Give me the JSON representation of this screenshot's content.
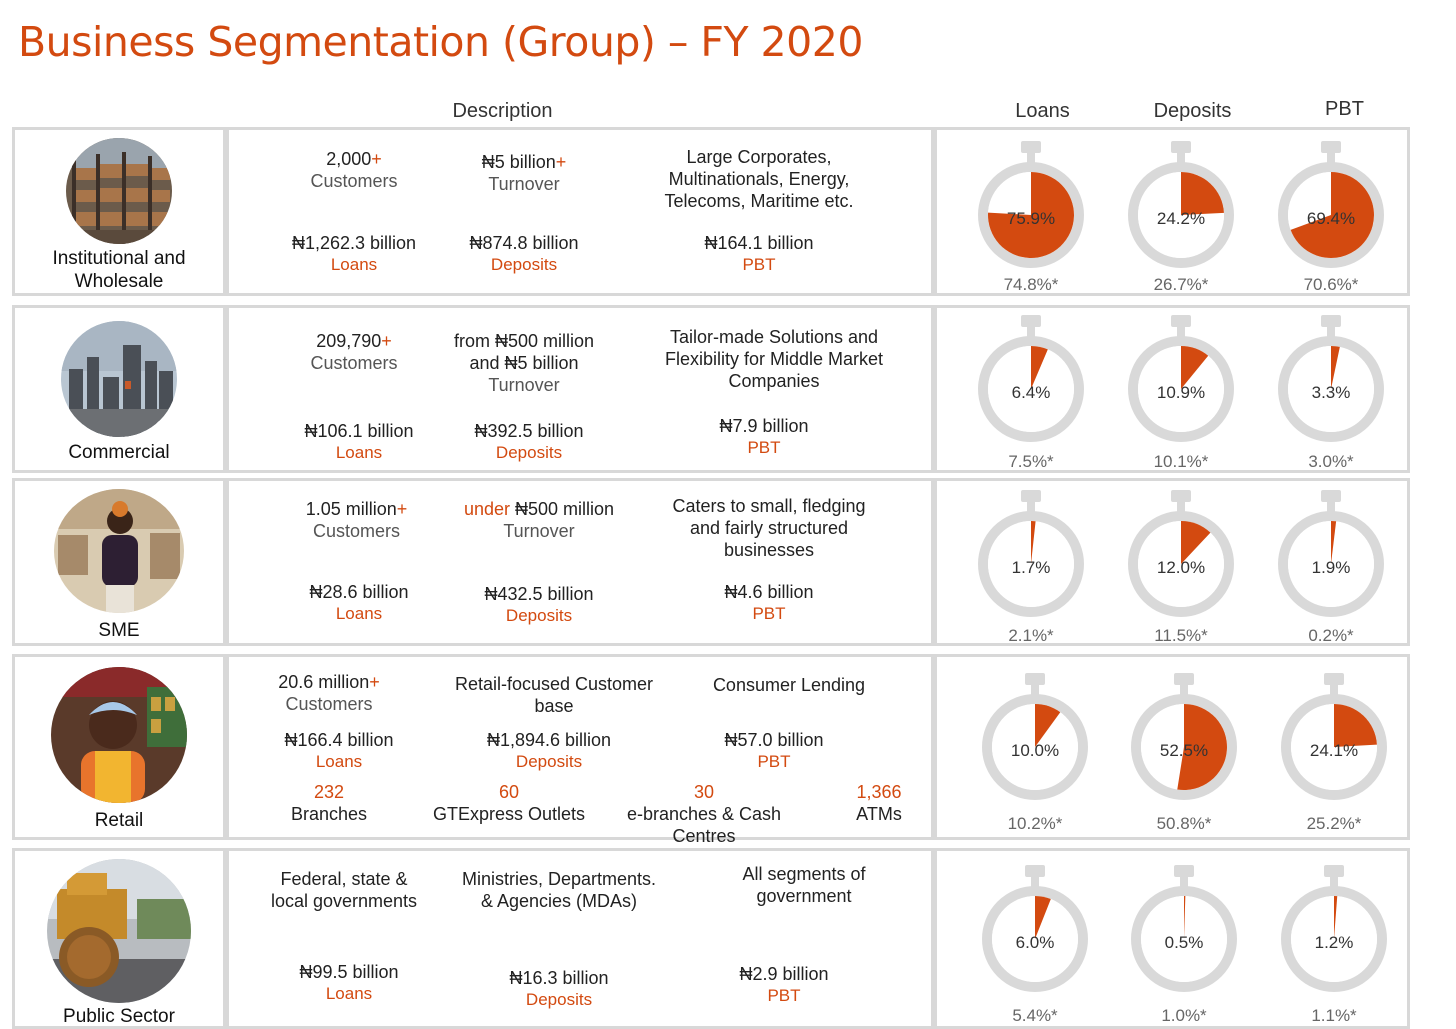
{
  "title": "Business Segmentation (Group) – FY 2020",
  "headers": {
    "description": "Description",
    "loans": "Loans",
    "deposits": "Deposits",
    "pbt": "PBT"
  },
  "colors": {
    "accent": "#d34a10",
    "ring": "#d9d9d9",
    "border": "#d8d8d8"
  },
  "segments": [
    {
      "name_line1": "Institutional and",
      "name_line2": "Wholesale",
      "image_icon": "warehouse-photo",
      "customers_value": "2,000",
      "plus": "+",
      "customers_label": "Customers",
      "turnover_value": "₦5 billion",
      "turnover_label": "Turnover",
      "focus_line1": "Large Corporates,",
      "focus_line2": "Multinationals, Energy,",
      "focus_line3": "Telecoms, Maritime etc.",
      "loans_value": "₦1,262.3 billion",
      "loans_label": "Loans",
      "deposits_value": "₦874.8 billion",
      "deposits_label": "Deposits",
      "pbt_value": "₦164.1 billion",
      "pbt_label": "PBT",
      "charts": [
        {
          "metric": "Loans",
          "value": 75.9,
          "label": "75.9%",
          "prior": "74.8%*"
        },
        {
          "metric": "Deposits",
          "value": 24.2,
          "label": "24.2%",
          "prior": "26.7%*"
        },
        {
          "metric": "PBT",
          "value": 69.4,
          "label": "69.4%",
          "prior": "70.6%*"
        }
      ]
    },
    {
      "name_line1": "Commercial",
      "image_icon": "city-skyline-photo",
      "customers_value": "209,790",
      "plus": "+",
      "customers_label": "Customers",
      "turnover_line1": "from ₦500 million",
      "turnover_line2": "and ₦5 billion",
      "turnover_label": "Turnover",
      "focus_line1": "Tailor-made Solutions and",
      "focus_line2": "Flexibility for Middle Market",
      "focus_line3": "Companies",
      "loans_value": "₦106.1 billion",
      "loans_label": "Loans",
      "deposits_value": "₦392.5 billion",
      "deposits_label": "Deposits",
      "pbt_value": "₦7.9 billion",
      "pbt_label": "PBT",
      "charts": [
        {
          "metric": "Loans",
          "value": 6.4,
          "label": "6.4%",
          "prior": "7.5%*"
        },
        {
          "metric": "Deposits",
          "value": 10.9,
          "label": "10.9%",
          "prior": "10.1%*"
        },
        {
          "metric": "PBT",
          "value": 3.3,
          "label": "3.3%",
          "prior": "3.0%*"
        }
      ]
    },
    {
      "name_line1": "SME",
      "image_icon": "shop-owner-photo",
      "customers_value": "1.05 million",
      "plus": "+",
      "customers_label": "Customers",
      "turnover_prefix": "under",
      "turnover_value": "₦500 million",
      "turnover_label": "Turnover",
      "focus_line1": "Caters to small, fledging",
      "focus_line2": "and fairly structured",
      "focus_line3": "businesses",
      "loans_value": "₦28.6 billion",
      "loans_label": "Loans",
      "deposits_value": "₦432.5 billion",
      "deposits_label": "Deposits",
      "pbt_value": "₦4.6 billion",
      "pbt_label": "PBT",
      "charts": [
        {
          "metric": "Loans",
          "value": 1.7,
          "label": "1.7%",
          "prior": "2.1%*"
        },
        {
          "metric": "Deposits",
          "value": 12.0,
          "label": "12.0%",
          "prior": "11.5%*"
        },
        {
          "metric": "PBT",
          "value": 1.9,
          "label": "1.9%",
          "prior": "0.2%*"
        }
      ]
    },
    {
      "name_line1": "Retail",
      "image_icon": "market-vendor-photo",
      "customers_value": "20.6 million",
      "plus": "+",
      "customers_label": "Customers",
      "focus_a_line1": "Retail-focused Customer",
      "focus_a_line2": "base",
      "focus_b": "Consumer Lending",
      "loans_value": "₦166.4 billion",
      "loans_label": "Loans",
      "deposits_value": "₦1,894.6 billion",
      "deposits_label": "Deposits",
      "pbt_value": "₦57.0 billion",
      "pbt_label": "PBT",
      "channels": [
        {
          "count": "232",
          "label": "Branches"
        },
        {
          "count": "60",
          "label": "GTExpress Outlets"
        },
        {
          "count": "30",
          "label": "e-branches & Cash Centres"
        },
        {
          "count": "1,366",
          "label": "ATMs"
        }
      ],
      "charts": [
        {
          "metric": "Loans",
          "value": 10.0,
          "label": "10.0%",
          "prior": "10.2%*"
        },
        {
          "metric": "Deposits",
          "value": 52.5,
          "label": "52.5%",
          "prior": "50.8%*"
        },
        {
          "metric": "PBT",
          "value": 24.1,
          "label": "24.1%",
          "prior": "25.2%*"
        }
      ]
    },
    {
      "name_line1": "Public Sector",
      "image_icon": "road-roller-photo",
      "focus_a_line1": "Federal, state &",
      "focus_a_line2": "local governments",
      "focus_b_line1": "Ministries, Departments.",
      "focus_b_line2": "& Agencies (MDAs)",
      "focus_c_line1": "All segments of",
      "focus_c_line2": "government",
      "loans_value": "₦99.5 billion",
      "loans_label": "Loans",
      "deposits_value": "₦16.3 billion",
      "deposits_label": "Deposits",
      "pbt_value": "₦2.9 billion",
      "pbt_label": "PBT",
      "charts": [
        {
          "metric": "Loans",
          "value": 6.0,
          "label": "6.0%",
          "prior": "5.4%*"
        },
        {
          "metric": "Deposits",
          "value": 0.5,
          "label": "0.5%",
          "prior": "1.0%*"
        },
        {
          "metric": "PBT",
          "value": 1.2,
          "label": "1.2%",
          "prior": "1.1%*"
        }
      ]
    }
  ]
}
